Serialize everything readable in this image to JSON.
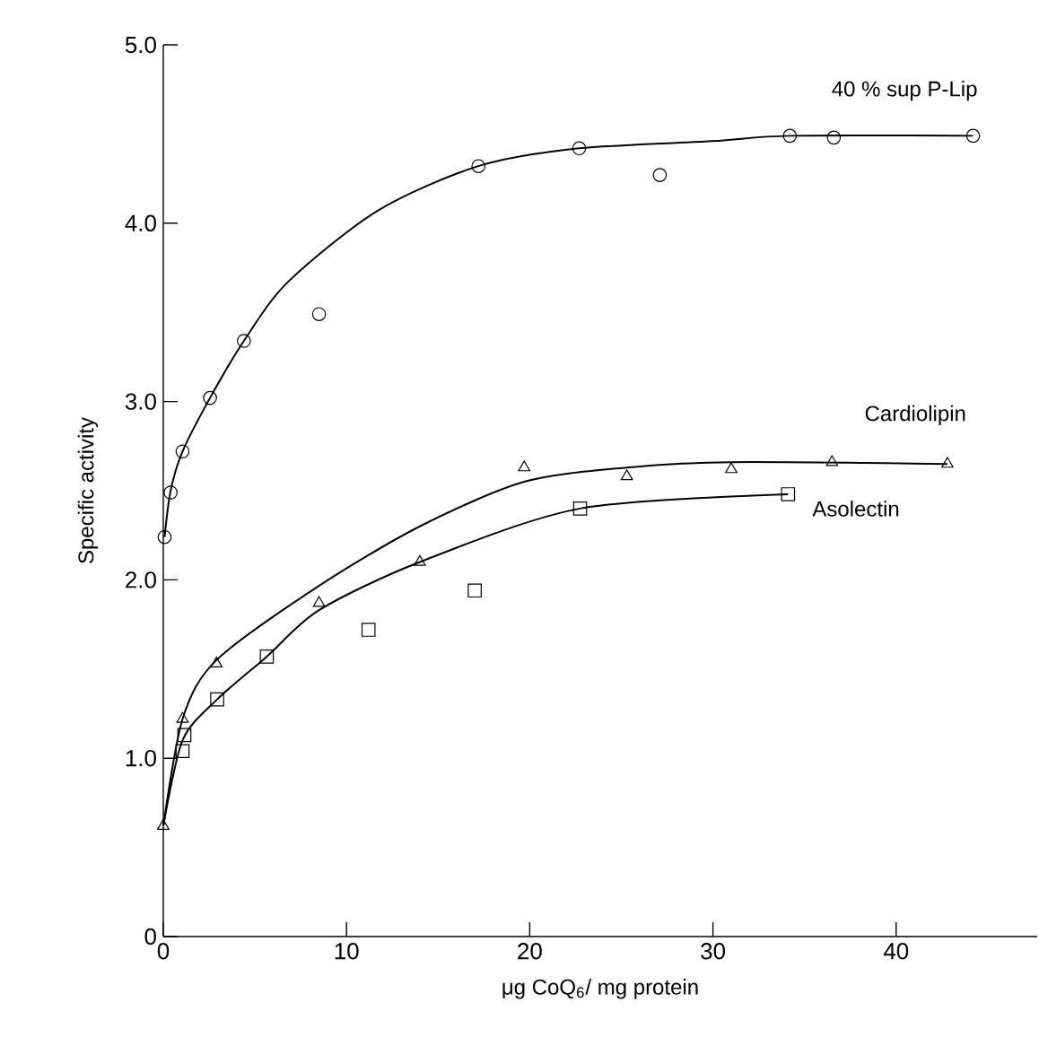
{
  "chart_data": {
    "type": "scatter",
    "xlabel": "μg CoQ$_{6}$/ mg protein",
    "ylabel": "Specific activity",
    "xlim": [
      0,
      47.7
    ],
    "ylim": [
      0,
      5
    ],
    "xticks": [
      0,
      10,
      20,
      30,
      40
    ],
    "yticks": [
      0,
      {
        "value": 1,
        "label": "1.0"
      },
      {
        "value": 2,
        "label": "2.0"
      },
      {
        "value": 3,
        "label": "3.0"
      },
      {
        "value": 4,
        "label": "4.0"
      },
      {
        "value": 5,
        "label": "5.0"
      }
    ],
    "series": [
      {
        "name": "40 % sup P-Lip",
        "marker": "circle",
        "color": "#000000",
        "x": [
          0.07,
          0.4,
          1.05,
          2.55,
          4.4,
          8.5,
          17.2,
          22.7,
          27.1,
          34.2,
          36.6,
          44.2
        ],
        "values": [
          2.24,
          2.49,
          2.72,
          3.02,
          3.34,
          3.49,
          4.32,
          4.42,
          4.27,
          4.49,
          4.48,
          4.49
        ]
      },
      {
        "name": "Cardiolipin",
        "marker": "triangle",
        "color": "#000000",
        "x": [
          0,
          1.05,
          2.9,
          8.5,
          14.0,
          19.7,
          25.3,
          31.0,
          36.5,
          42.8
        ],
        "values": [
          0.62,
          1.22,
          1.53,
          1.87,
          2.1,
          2.63,
          2.58,
          2.62,
          2.66,
          2.65
        ]
      },
      {
        "name": "Asolectin",
        "marker": "square",
        "color": "#000000",
        "x": [
          1.05,
          1.15,
          2.94,
          5.65,
          11.2,
          17.0,
          22.75,
          34.1
        ],
        "values": [
          1.04,
          1.13,
          1.33,
          1.57,
          1.72,
          1.94,
          2.4,
          2.48
        ]
      },
      {
        "type": "line",
        "color": "#000000",
        "x": [
          0.07,
          0.4,
          1.05,
          2.55,
          4.4,
          6.8,
          11.7,
          17.2,
          22.7,
          30,
          34.2,
          44.2
        ],
        "values": [
          2.24,
          2.5,
          2.72,
          3.02,
          3.34,
          3.67,
          4.07,
          4.32,
          4.42,
          4.46,
          4.49,
          4.49
        ]
      },
      {
        "type": "line",
        "color": "#000000",
        "x": [
          0,
          1.05,
          2.9,
          8.4,
          14,
          19.7,
          25.3,
          31.0,
          42.8
        ],
        "values": [
          0.62,
          1.22,
          1.55,
          1.96,
          2.3,
          2.55,
          2.63,
          2.66,
          2.65
        ]
      },
      {
        "type": "line",
        "color": "#000000",
        "x": [
          0,
          1.05,
          2.94,
          5.65,
          8.5,
          14.0,
          22.75,
          34.1
        ],
        "values": [
          0.62,
          1.1,
          1.33,
          1.57,
          1.83,
          2.1,
          2.4,
          2.48
        ]
      }
    ]
  }
}
